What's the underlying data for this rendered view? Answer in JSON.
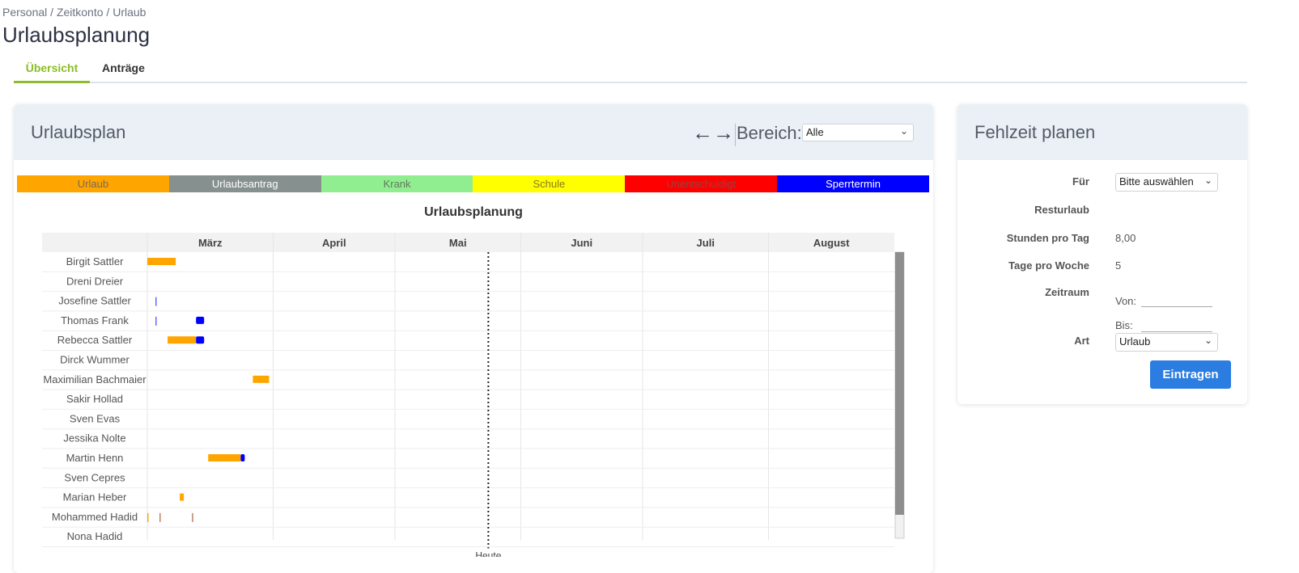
{
  "breadcrumb": [
    "Personal",
    "Zeitkonto",
    "Urlaub"
  ],
  "page_title": "Urlaubsplanung",
  "tabs": [
    {
      "label": "Übersicht",
      "active": true
    },
    {
      "label": "Anträge",
      "active": false
    }
  ],
  "plan": {
    "title": "Urlaubsplan",
    "nav_icons": [
      "arrow-left-icon",
      "arrow-right-icon"
    ],
    "bereich_label": "Bereich:",
    "bereich_value": "Alle",
    "legend": [
      {
        "label": "Urlaub",
        "color": "#ffa500",
        "text": "#7a6a50"
      },
      {
        "label": "Urlaubsantrag",
        "color": "#85908f",
        "text": "#ffffff"
      },
      {
        "label": "Krank",
        "color": "#90ee90",
        "text": "#5f7a5f"
      },
      {
        "label": "Schule",
        "color": "#ffff00",
        "text": "#8a7a20"
      },
      {
        "label": "Unentschuldigt",
        "color": "#ff0000",
        "text": "#9a4040"
      },
      {
        "label": "Sperrtermin",
        "color": "#0000ff",
        "text": "#ffffff"
      }
    ],
    "chart_title": "Urlaubsplanung",
    "months": [
      "März",
      "April",
      "Mai",
      "Juni",
      "Juli",
      "August"
    ],
    "today_label": "Heute",
    "today": "05-24",
    "employees": [
      "Birgit Sattler",
      "Dreni Dreier",
      "Josefine Sattler",
      "Thomas Frank",
      "Rebecca Sattler",
      "Dirck Wummer",
      "Maximilian Bachmaier",
      "Sakir Hollad",
      "Sven Evas",
      "Jessika Nolte",
      "Martin Henn",
      "Sven Cepres",
      "Marian Heber",
      "Mohammed Hadid",
      "Nona Hadid"
    ],
    "entries": [
      {
        "employee": "Birgit Sattler",
        "type": "Urlaub",
        "start": "03-01",
        "end": "03-08"
      },
      {
        "employee": "Josefine Sattler",
        "type": "Sperrtermin",
        "start": "03-03",
        "end": "03-03",
        "thin": true
      },
      {
        "employee": "Thomas Frank",
        "type": "Sperrtermin",
        "start": "03-03",
        "end": "03-03",
        "thin": true
      },
      {
        "employee": "Thomas Frank",
        "type": "Sperrtermin",
        "start": "03-13",
        "end": "03-15"
      },
      {
        "employee": "Rebecca Sattler",
        "type": "Urlaub",
        "start": "03-06",
        "end": "03-13"
      },
      {
        "employee": "Rebecca Sattler",
        "type": "Sperrtermin",
        "start": "03-13",
        "end": "03-15"
      },
      {
        "employee": "Maximilian Bachmaier",
        "type": "Urlaub",
        "start": "03-27",
        "end": "03-31"
      },
      {
        "employee": "Martin Henn",
        "type": "Urlaub",
        "start": "03-16",
        "end": "03-24"
      },
      {
        "employee": "Martin Henn",
        "type": "Sperrtermin",
        "start": "03-24",
        "end": "03-25"
      },
      {
        "employee": "Marian Heber",
        "type": "Urlaub",
        "start": "03-09",
        "end": "03-10"
      },
      {
        "employee": "Mohammed Hadid",
        "type": "Urlaub",
        "start": "03-01",
        "end": "03-01",
        "thin": true
      },
      {
        "employee": "Mohammed Hadid",
        "type": "Unentschuldigt",
        "start": "03-04",
        "end": "03-04",
        "thin": true
      },
      {
        "employee": "Mohammed Hadid",
        "type": "Unentschuldigt",
        "start": "03-12",
        "end": "03-12",
        "thin": true
      }
    ]
  },
  "fehlzeit": {
    "title": "Fehlzeit planen",
    "fuer_label": "Für",
    "fuer_value": "Bitte auswählen",
    "resturlaub_label": "Resturlaub",
    "stunden_label": "Stunden pro Tag",
    "stunden_value": "8,00",
    "tage_label": "Tage pro Woche",
    "tage_value": "5",
    "zeitraum_label": "Zeitraum",
    "von_label": "Von:",
    "bis_label": "Bis:",
    "art_label": "Art",
    "art_value": "Urlaub",
    "submit": "Eintragen"
  }
}
